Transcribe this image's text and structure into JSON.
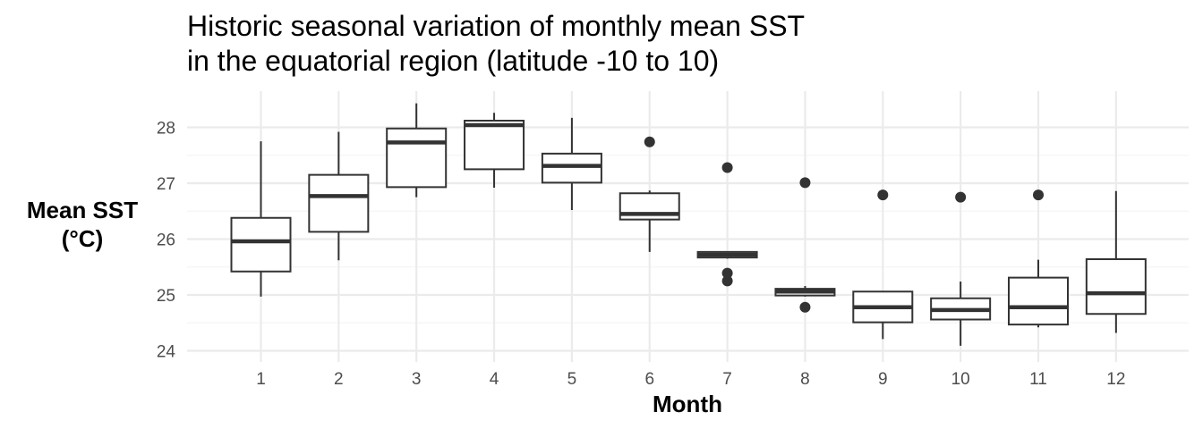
{
  "chart_data": {
    "type": "box",
    "title_lines": [
      "Historic seasonal variation of monthly mean SST",
      "in the equatorial region (latitude -10 to 10)"
    ],
    "xlabel": "Month",
    "ylabel_lines": [
      "Mean SST",
      "(°C)"
    ],
    "ylim": [
      23.85,
      28.65
    ],
    "yticks": [
      24,
      25,
      26,
      27,
      28
    ],
    "grid": true,
    "categories": [
      "1",
      "2",
      "3",
      "4",
      "5",
      "6",
      "7",
      "8",
      "9",
      "10",
      "11",
      "12"
    ],
    "boxes": [
      {
        "month": "1",
        "min": 24.97,
        "q1": 25.42,
        "median": 25.96,
        "q3": 26.38,
        "max": 27.75,
        "outliers": []
      },
      {
        "month": "2",
        "min": 25.62,
        "q1": 26.13,
        "median": 26.77,
        "q3": 27.15,
        "max": 27.92,
        "outliers": []
      },
      {
        "month": "3",
        "min": 26.75,
        "q1": 26.93,
        "median": 27.73,
        "q3": 27.98,
        "max": 28.43,
        "outliers": []
      },
      {
        "month": "4",
        "min": 26.92,
        "q1": 27.25,
        "median": 28.04,
        "q3": 28.12,
        "max": 28.26,
        "outliers": []
      },
      {
        "month": "5",
        "min": 26.52,
        "q1": 27.01,
        "median": 27.31,
        "q3": 27.53,
        "max": 28.17,
        "outliers": []
      },
      {
        "month": "6",
        "min": 25.77,
        "q1": 26.35,
        "median": 26.45,
        "q3": 26.82,
        "max": 26.87,
        "outliers": [
          27.74
        ]
      },
      {
        "month": "7",
        "min": 25.65,
        "q1": 25.67,
        "median": 25.72,
        "q3": 25.77,
        "max": 25.78,
        "outliers": [
          27.28,
          25.39,
          25.25
        ]
      },
      {
        "month": "8",
        "min": 24.97,
        "q1": 24.99,
        "median": 25.06,
        "q3": 25.11,
        "max": 25.16,
        "outliers": [
          27.01,
          24.78
        ]
      },
      {
        "month": "9",
        "min": 24.21,
        "q1": 24.51,
        "median": 24.78,
        "q3": 25.06,
        "max": 25.06,
        "outliers": [
          26.79
        ]
      },
      {
        "month": "10",
        "min": 24.09,
        "q1": 24.56,
        "median": 24.73,
        "q3": 24.94,
        "max": 25.24,
        "outliers": [
          26.75
        ]
      },
      {
        "month": "11",
        "min": 24.42,
        "q1": 24.47,
        "median": 24.78,
        "q3": 25.31,
        "max": 25.63,
        "outliers": [
          26.79
        ]
      },
      {
        "month": "12",
        "min": 24.32,
        "q1": 24.66,
        "median": 25.03,
        "q3": 25.64,
        "max": 26.86,
        "outliers": []
      }
    ],
    "colors": {
      "box_line": "#333333",
      "grid_major": "#ebebeb",
      "grid_minor": "#f4f4f4",
      "tick_text": "#4d4d4d",
      "background": "#ffffff"
    }
  }
}
